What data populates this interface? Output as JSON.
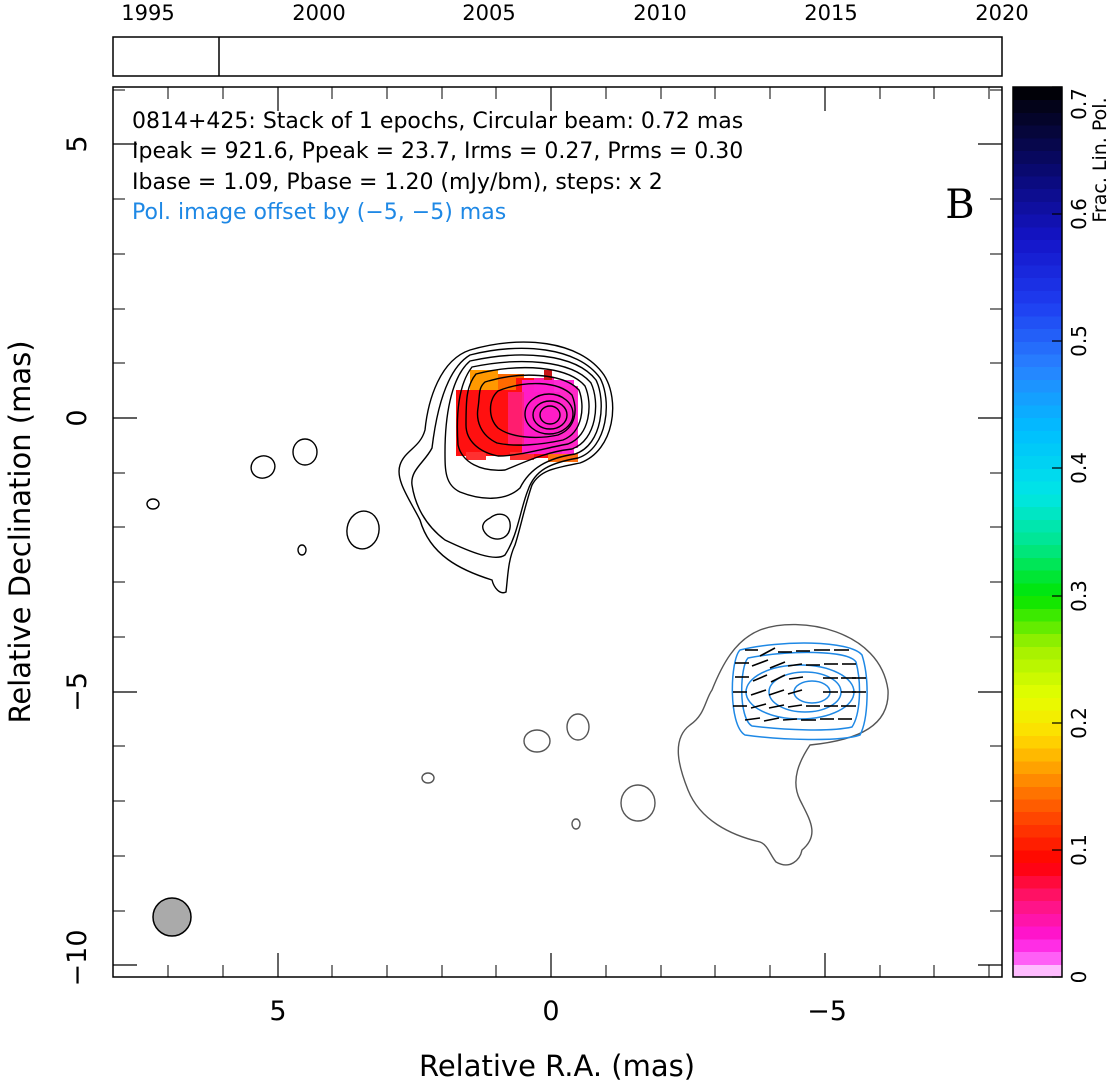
{
  "timeline": {
    "years": [
      "1995",
      "2000",
      "2005",
      "2010",
      "2015",
      "2020"
    ],
    "epoch_marker_year": 1997.1
  },
  "info": {
    "line1": "0814+425: Stack of 1 epochs, Circular beam: 0.72 mas",
    "line2": "Ipeak = 921.6, Ppeak = 23.7, Irms = 0.27, Prms = 0.30",
    "line3": "Ibase = 1.09, Pbase = 1.20 (mJy/bm), steps: x 2",
    "line4": "Pol. image offset by (−5, −5) mas",
    "panel_letter": "B"
  },
  "colors": {
    "stokes_i": "#000000",
    "offset_i": "#555555",
    "pol_contour": "#1e88e5",
    "beam_fill": "#aaaaaa",
    "info_highlight": "#1e88e5"
  },
  "colorbar": {
    "label": "Frac. Lin. Pol.",
    "tick_labels": [
      "0",
      "0.1",
      "0.2",
      "0.3",
      "0.4",
      "0.5",
      "0.6",
      "0.7"
    ]
  },
  "chart_data": {
    "type": "contour-map",
    "xlabel": "Relative R.A. (mas)",
    "ylabel": "Relative Declination (mas)",
    "xlim": [
      8,
      -8.2
    ],
    "ylim": [
      -10.3,
      6
    ],
    "x_ticks": [
      "5",
      "0",
      "−5"
    ],
    "y_ticks": [
      "5",
      "0",
      "−5",
      "−10"
    ],
    "colorbar_range": [
      0,
      0.7
    ],
    "beam": {
      "x": 6.9,
      "y": -9.1,
      "fwhm_mas": 0.72
    },
    "core": {
      "ra": 0,
      "dec": 0,
      "peak_mJy_per_beam": 921.6
    },
    "pol_peak_mJy_per_beam": 23.7,
    "pol_offset_mas": [
      -5,
      -5
    ]
  }
}
